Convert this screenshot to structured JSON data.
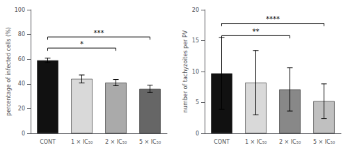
{
  "chart_data": [
    {
      "type": "bar",
      "ylabel": "percentage of infected cells (%)",
      "categories": [
        "CONT",
        "1 × IC₅₀",
        "2 × IC₅₀",
        "5 × IC₅₀"
      ],
      "values": [
        59.0,
        44.0,
        41.0,
        36.0
      ],
      "errors": [
        1.8,
        3.2,
        2.5,
        3.0
      ],
      "colors": [
        "#111111",
        "#d9d9d9",
        "#aaaaaa",
        "#666666"
      ],
      "ylim": [
        0,
        100
      ],
      "yticks": [
        0,
        20,
        40,
        60,
        80,
        100
      ],
      "grid": false,
      "annotations": [
        {
          "text": "*",
          "x1": "CONT",
          "x2": "2 × IC₅₀",
          "y": 69
        },
        {
          "text": "***",
          "x1": "CONT",
          "x2": "5 × IC₅₀",
          "y": 78
        }
      ]
    },
    {
      "type": "bar",
      "ylabel": "number of tachyzoites per PV",
      "categories": [
        "CONT",
        "1 × IC₅₀",
        "2 × IC₅₀",
        "5 × IC₅₀"
      ],
      "values": [
        9.7,
        8.2,
        7.1,
        5.2
      ],
      "errors": [
        5.8,
        5.2,
        3.5,
        2.8
      ],
      "colors": [
        "#111111",
        "#d9d9d9",
        "#888888",
        "#c0c0c0"
      ],
      "ylim": [
        0,
        20
      ],
      "yticks": [
        0,
        5,
        10,
        15,
        20
      ],
      "grid": false,
      "annotations": [
        {
          "text": "**",
          "x1": "CONT",
          "x2": "2 × IC₅₀",
          "y": 15.8
        },
        {
          "text": "****",
          "x1": "CONT",
          "x2": "5 × IC₅₀",
          "y": 17.8
        }
      ]
    }
  ]
}
